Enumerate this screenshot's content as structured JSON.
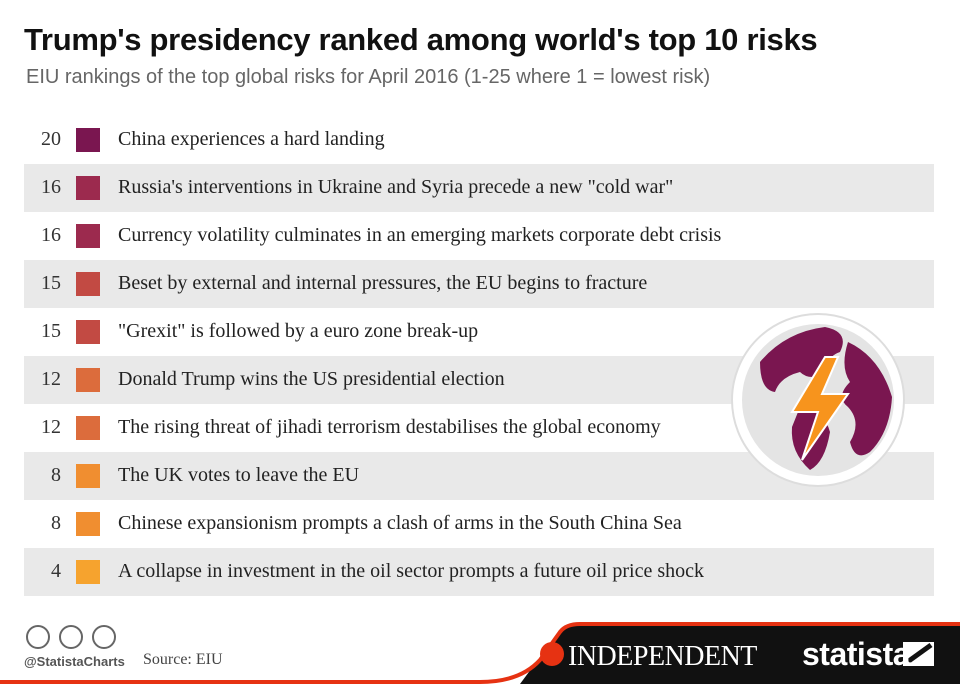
{
  "header": {
    "title": "Trump's presidency ranked among world's top 10 risks",
    "subtitle": "EIU rankings of the top global risks for April 2016 (1-25 where 1 = lowest risk)"
  },
  "rows": [
    {
      "score": 20,
      "color": "#7a1650",
      "label": "China experiences a hard landing"
    },
    {
      "score": 16,
      "color": "#9c2a4e",
      "label": "Russia's interventions in Ukraine and Syria precede a new \"cold war\""
    },
    {
      "score": 16,
      "color": "#9c2a4e",
      "label": "Currency volatility culminates in an emerging markets corporate debt crisis"
    },
    {
      "score": 15,
      "color": "#c24a43",
      "label": "Beset by external and internal pressures, the EU begins to fracture"
    },
    {
      "score": 15,
      "color": "#c24a43",
      "label": "\"Grexit\" is followed by a euro zone break-up"
    },
    {
      "score": 12,
      "color": "#dc6c3c",
      "label": "Donald Trump wins the US presidential election"
    },
    {
      "score": 12,
      "color": "#dc6c3c",
      "label": "The rising threat of jihadi terrorism destabilises the global economy"
    },
    {
      "score": 8,
      "color": "#f08e30",
      "label": "The UK votes to leave the EU"
    },
    {
      "score": 8,
      "color": "#f08e30",
      "label": "Chinese expansionism prompts a clash of arms in the South China Sea"
    },
    {
      "score": 4,
      "color": "#f6a32e",
      "label": "A collapse in investment in the oil sector prompts a future oil price shock"
    }
  ],
  "footer": {
    "handle": "@StatistaCharts",
    "source": "Source: EIU",
    "publisher": "INDEPENDENT",
    "brand": "statista"
  }
}
